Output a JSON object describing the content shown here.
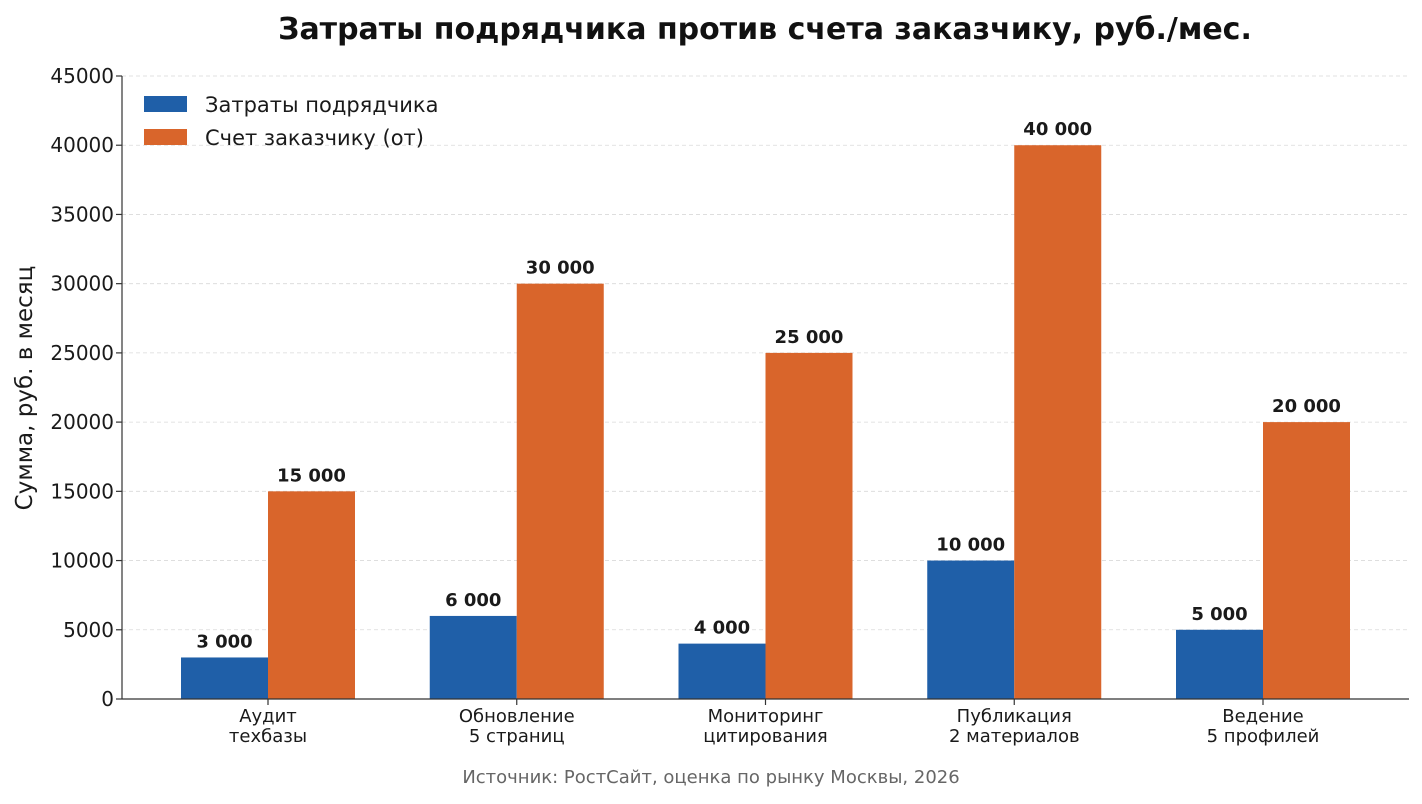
{
  "chart_data": {
    "type": "bar",
    "title": "Затраты подрядчика против счета заказчику, руб./мес.",
    "ylabel": "Сумма, руб. в месяц",
    "xlabel": "",
    "source": "Источник: РостСайт, оценка по рынку Москвы, 2026",
    "ylim": [
      0,
      45000
    ],
    "yticks": [
      0,
      5000,
      10000,
      15000,
      20000,
      25000,
      30000,
      35000,
      40000,
      45000
    ],
    "ytick_labels": [
      "0",
      "5000",
      "10000",
      "15000",
      "20000",
      "25000",
      "30000",
      "35000",
      "40000",
      "45000"
    ],
    "grid": "horizontal dashed",
    "legend_position": "top-left",
    "categories": [
      [
        "Аудит",
        "техбазы"
      ],
      [
        "Обновление",
        "5 страниц"
      ],
      [
        "Мониторинг",
        "цитирования"
      ],
      [
        "Публикация",
        "2 материалов"
      ],
      [
        "Ведение",
        "5 профилей"
      ]
    ],
    "series": [
      {
        "name": "Затраты подрядчика",
        "color": "#1f5fa8",
        "values": [
          3000,
          6000,
          4000,
          10000,
          5000
        ],
        "labels": [
          "3 000",
          "6 000",
          "4 000",
          "10 000",
          "5 000"
        ]
      },
      {
        "name": "Счет заказчику (от)",
        "color": "#d9652b",
        "values": [
          15000,
          30000,
          25000,
          40000,
          20000
        ],
        "labels": [
          "15 000",
          "30 000",
          "25 000",
          "40 000",
          "20 000"
        ]
      }
    ]
  }
}
